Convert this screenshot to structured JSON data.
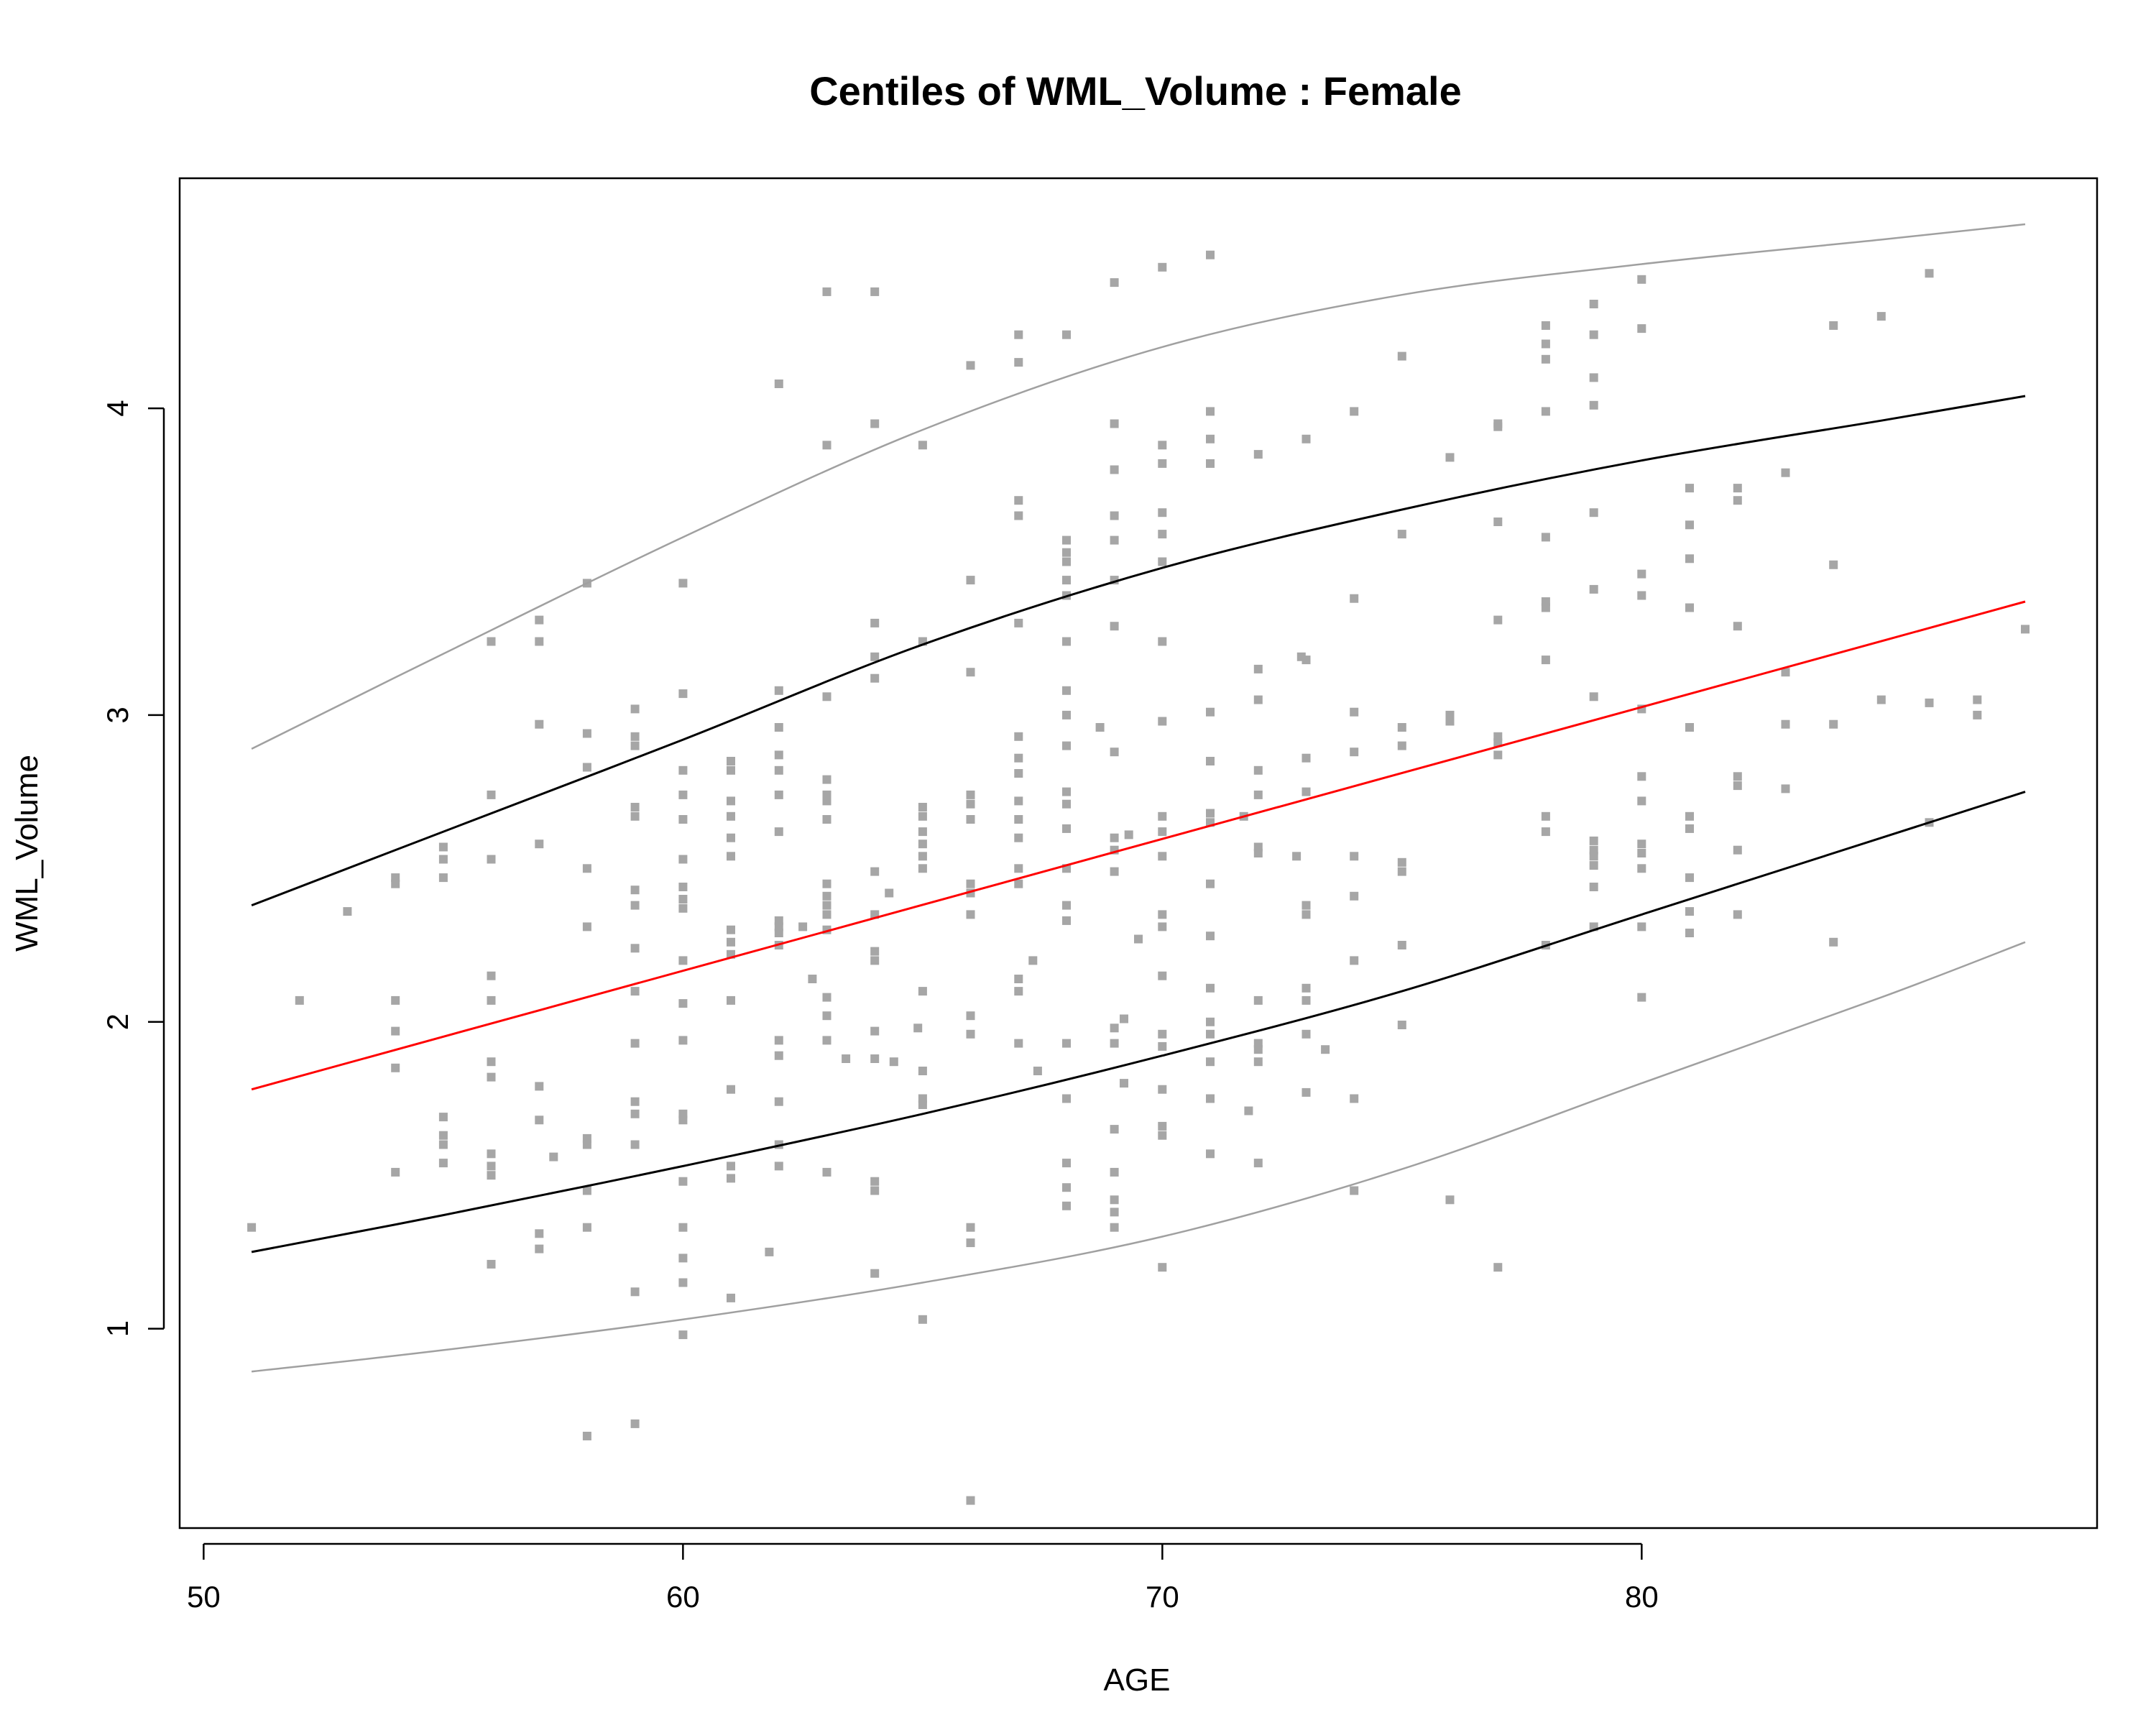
{
  "chart_data": {
    "type": "scatter",
    "title": "Centiles of WML_Volume :  Female",
    "xlabel": "AGE",
    "ylabel": "WML_Volume",
    "xlim": [
      49.5,
      89.5
    ],
    "ylim": [
      0.35,
      4.75
    ],
    "xticks": [
      50,
      60,
      70,
      80
    ],
    "yticks": [
      1,
      2,
      3,
      4
    ],
    "grid": false,
    "legend": "none",
    "colors": {
      "points": "#a6a6a6",
      "outer_centiles": "#a0a0a0",
      "inner_centiles": "#000000",
      "median": "#ff0000"
    },
    "centiles": [
      {
        "color": "#a0a0a0",
        "x": [
          51,
          55,
          60,
          65,
          70,
          75,
          80,
          85,
          88
        ],
        "y": [
          2.89,
          3.2,
          3.58,
          3.93,
          4.2,
          4.37,
          4.47,
          4.55,
          4.6
        ]
      },
      {
        "color": "#000000",
        "x": [
          51,
          55,
          60,
          65,
          70,
          75,
          80,
          85,
          88
        ],
        "y": [
          2.38,
          2.62,
          2.92,
          3.23,
          3.48,
          3.67,
          3.83,
          3.96,
          4.04
        ]
      },
      {
        "color": "#ff0000",
        "x": [
          51,
          88
        ],
        "y": [
          1.78,
          3.37
        ]
      },
      {
        "color": "#000000",
        "x": [
          51,
          55,
          60,
          65,
          70,
          75,
          80,
          85,
          88
        ],
        "y": [
          1.25,
          1.37,
          1.53,
          1.7,
          1.89,
          2.1,
          2.35,
          2.6,
          2.75
        ]
      },
      {
        "color": "#a0a0a0",
        "x": [
          51,
          55,
          60,
          65,
          70,
          75,
          80,
          85,
          88
        ],
        "y": [
          0.86,
          0.93,
          1.03,
          1.15,
          1.3,
          1.52,
          1.8,
          2.08,
          2.26
        ]
      }
    ],
    "points": [
      [
        51,
        1.33
      ],
      [
        52,
        2.07
      ],
      [
        53,
        2.36
      ],
      [
        54,
        2.45
      ],
      [
        54,
        2.47
      ],
      [
        54,
        2.07
      ],
      [
        54,
        1.97
      ],
      [
        54,
        1.85
      ],
      [
        54,
        1.51
      ],
      [
        55,
        2.57
      ],
      [
        55,
        2.53
      ],
      [
        55,
        2.47
      ],
      [
        55,
        1.69
      ],
      [
        55,
        1.63
      ],
      [
        55,
        1.6
      ],
      [
        55,
        1.54
      ],
      [
        56,
        3.24
      ],
      [
        56,
        2.74
      ],
      [
        56,
        2.53
      ],
      [
        56,
        2.15
      ],
      [
        56,
        2.07
      ],
      [
        56,
        1.87
      ],
      [
        56,
        1.82
      ],
      [
        56,
        1.57
      ],
      [
        56,
        1.53
      ],
      [
        56,
        1.5
      ],
      [
        56,
        1.21
      ],
      [
        57,
        3.31
      ],
      [
        57,
        3.24
      ],
      [
        57,
        2.97
      ],
      [
        57,
        2.58
      ],
      [
        57,
        1.79
      ],
      [
        57,
        1.68
      ],
      [
        57,
        1.31
      ],
      [
        57,
        1.26
      ],
      [
        57.3,
        1.56
      ],
      [
        58,
        3.43
      ],
      [
        58,
        2.94
      ],
      [
        58,
        2.83
      ],
      [
        58,
        2.5
      ],
      [
        58,
        2.31
      ],
      [
        58,
        1.62
      ],
      [
        58,
        1.6
      ],
      [
        58,
        1.45
      ],
      [
        58,
        1.33
      ],
      [
        58,
        0.65
      ],
      [
        59,
        3.02
      ],
      [
        59,
        2.93
      ],
      [
        59,
        2.9
      ],
      [
        59,
        2.7
      ],
      [
        59,
        2.67
      ],
      [
        59,
        2.43
      ],
      [
        59,
        2.38
      ],
      [
        59,
        2.24
      ],
      [
        59,
        2.1
      ],
      [
        59,
        1.93
      ],
      [
        59,
        1.74
      ],
      [
        59,
        1.7
      ],
      [
        59,
        1.6
      ],
      [
        59,
        1.12
      ],
      [
        59,
        0.69
      ],
      [
        60,
        3.43
      ],
      [
        60,
        3.07
      ],
      [
        60,
        2.82
      ],
      [
        60,
        2.74
      ],
      [
        60,
        2.66
      ],
      [
        60,
        2.53
      ],
      [
        60,
        2.44
      ],
      [
        60,
        2.4
      ],
      [
        60,
        2.37
      ],
      [
        60,
        2.2
      ],
      [
        60,
        2.06
      ],
      [
        60,
        1.94
      ],
      [
        60,
        1.7
      ],
      [
        60,
        1.68
      ],
      [
        60,
        1.48
      ],
      [
        60,
        1.33
      ],
      [
        60,
        1.23
      ],
      [
        60,
        1.15
      ],
      [
        60,
        0.98
      ],
      [
        61,
        2.85
      ],
      [
        61,
        2.82
      ],
      [
        61,
        2.72
      ],
      [
        61,
        2.67
      ],
      [
        61,
        2.6
      ],
      [
        61,
        2.54
      ],
      [
        61,
        2.3
      ],
      [
        61,
        2.26
      ],
      [
        61,
        2.22
      ],
      [
        61,
        2.07
      ],
      [
        61,
        1.78
      ],
      [
        61,
        1.53
      ],
      [
        61,
        1.49
      ],
      [
        61,
        1.1
      ],
      [
        61.8,
        1.25
      ],
      [
        62,
        4.08
      ],
      [
        62,
        3.08
      ],
      [
        62,
        2.96
      ],
      [
        62,
        2.87
      ],
      [
        62,
        2.82
      ],
      [
        62,
        2.74
      ],
      [
        62,
        2.62
      ],
      [
        62,
        2.33
      ],
      [
        62,
        2.31
      ],
      [
        62,
        2.29
      ],
      [
        62,
        2.25
      ],
      [
        62,
        1.94
      ],
      [
        62,
        1.89
      ],
      [
        62,
        1.74
      ],
      [
        62,
        1.6
      ],
      [
        62,
        1.53
      ],
      [
        62.5,
        2.31
      ],
      [
        62.7,
        2.14
      ],
      [
        63,
        4.38
      ],
      [
        63,
        3.88
      ],
      [
        63,
        3.06
      ],
      [
        63,
        2.79
      ],
      [
        63,
        2.74
      ],
      [
        63,
        2.72
      ],
      [
        63,
        2.66
      ],
      [
        63,
        2.45
      ],
      [
        63,
        2.41
      ],
      [
        63,
        2.38
      ],
      [
        63,
        2.35
      ],
      [
        63,
        2.3
      ],
      [
        63,
        2.08
      ],
      [
        63,
        2.02
      ],
      [
        63,
        1.94
      ],
      [
        63,
        1.51
      ],
      [
        63.4,
        1.88
      ],
      [
        64,
        4.38
      ],
      [
        64,
        3.95
      ],
      [
        64,
        3.3
      ],
      [
        64,
        3.19
      ],
      [
        64,
        3.12
      ],
      [
        64,
        2.49
      ],
      [
        64,
        2.35
      ],
      [
        64,
        2.23
      ],
      [
        64,
        2.2
      ],
      [
        64,
        1.97
      ],
      [
        64,
        1.88
      ],
      [
        64,
        1.48
      ],
      [
        64,
        1.45
      ],
      [
        64,
        1.18
      ],
      [
        64.3,
        2.42
      ],
      [
        64.4,
        1.87
      ],
      [
        65,
        3.88
      ],
      [
        65,
        3.24
      ],
      [
        65,
        2.7
      ],
      [
        65,
        2.67
      ],
      [
        65,
        2.62
      ],
      [
        65,
        2.58
      ],
      [
        65,
        2.54
      ],
      [
        65,
        2.5
      ],
      [
        65,
        2.1
      ],
      [
        65,
        1.84
      ],
      [
        65,
        1.75
      ],
      [
        65,
        1.73
      ],
      [
        65,
        1.03
      ],
      [
        64.9,
        1.98
      ],
      [
        66,
        4.14
      ],
      [
        66,
        3.44
      ],
      [
        66,
        3.14
      ],
      [
        66,
        2.74
      ],
      [
        66,
        2.71
      ],
      [
        66,
        2.66
      ],
      [
        66,
        2.45
      ],
      [
        66,
        2.42
      ],
      [
        66,
        2.35
      ],
      [
        66,
        2.02
      ],
      [
        66,
        1.96
      ],
      [
        66,
        1.33
      ],
      [
        66,
        1.28
      ],
      [
        66,
        0.44
      ],
      [
        67,
        4.24
      ],
      [
        67,
        4.15
      ],
      [
        67,
        3.7
      ],
      [
        67,
        3.65
      ],
      [
        67,
        3.3
      ],
      [
        67,
        2.93
      ],
      [
        67,
        2.86
      ],
      [
        67,
        2.81
      ],
      [
        67,
        2.72
      ],
      [
        67,
        2.66
      ],
      [
        67,
        2.6
      ],
      [
        67,
        2.5
      ],
      [
        67,
        2.45
      ],
      [
        67,
        2.14
      ],
      [
        67,
        2.1
      ],
      [
        67,
        1.93
      ],
      [
        67.3,
        2.2
      ],
      [
        67.4,
        1.84
      ],
      [
        68,
        4.24
      ],
      [
        68,
        3.57
      ],
      [
        68,
        3.53
      ],
      [
        68,
        3.5
      ],
      [
        68,
        3.44
      ],
      [
        68,
        3.39
      ],
      [
        68,
        3.24
      ],
      [
        68,
        3.08
      ],
      [
        68,
        3.0
      ],
      [
        68,
        2.9
      ],
      [
        68,
        2.75
      ],
      [
        68,
        2.71
      ],
      [
        68,
        2.63
      ],
      [
        68,
        2.5
      ],
      [
        68,
        2.38
      ],
      [
        68,
        2.33
      ],
      [
        68,
        1.93
      ],
      [
        68,
        1.75
      ],
      [
        68,
        1.54
      ],
      [
        68,
        1.46
      ],
      [
        68,
        1.4
      ],
      [
        69,
        4.41
      ],
      [
        69,
        3.95
      ],
      [
        69,
        3.8
      ],
      [
        69,
        3.65
      ],
      [
        69,
        3.57
      ],
      [
        69,
        3.44
      ],
      [
        69,
        3.29
      ],
      [
        69,
        2.88
      ],
      [
        69,
        2.6
      ],
      [
        69,
        2.56
      ],
      [
        69,
        2.49
      ],
      [
        69,
        1.98
      ],
      [
        69,
        1.93
      ],
      [
        69,
        1.65
      ],
      [
        69,
        1.51
      ],
      [
        69,
        1.42
      ],
      [
        69,
        1.38
      ],
      [
        69,
        1.33
      ],
      [
        69.2,
        2.01
      ],
      [
        69.2,
        1.8
      ],
      [
        69.3,
        2.61
      ],
      [
        68.7,
        2.96
      ],
      [
        69.5,
        2.27
      ],
      [
        70,
        4.46
      ],
      [
        70,
        3.88
      ],
      [
        70,
        3.82
      ],
      [
        70,
        3.66
      ],
      [
        70,
        3.59
      ],
      [
        70,
        3.5
      ],
      [
        70,
        3.24
      ],
      [
        70,
        2.98
      ],
      [
        70,
        2.67
      ],
      [
        70,
        2.62
      ],
      [
        70,
        2.54
      ],
      [
        70,
        2.35
      ],
      [
        70,
        2.31
      ],
      [
        70,
        2.15
      ],
      [
        70,
        1.96
      ],
      [
        70,
        1.92
      ],
      [
        70,
        1.78
      ],
      [
        70,
        1.66
      ],
      [
        70,
        1.63
      ],
      [
        70,
        1.2
      ],
      [
        71,
        4.5
      ],
      [
        71,
        3.99
      ],
      [
        71,
        3.9
      ],
      [
        71,
        3.82
      ],
      [
        71,
        3.01
      ],
      [
        71,
        2.85
      ],
      [
        71,
        2.68
      ],
      [
        71,
        2.65
      ],
      [
        71,
        2.45
      ],
      [
        71,
        2.28
      ],
      [
        71,
        2.11
      ],
      [
        71,
        2.0
      ],
      [
        71,
        1.96
      ],
      [
        71,
        1.87
      ],
      [
        71,
        1.75
      ],
      [
        71,
        1.57
      ],
      [
        71.7,
        2.67
      ],
      [
        71.8,
        1.71
      ],
      [
        72,
        3.85
      ],
      [
        72,
        3.15
      ],
      [
        72,
        3.05
      ],
      [
        72,
        2.82
      ],
      [
        72,
        2.74
      ],
      [
        72,
        2.57
      ],
      [
        72,
        2.55
      ],
      [
        72,
        2.07
      ],
      [
        72,
        1.93
      ],
      [
        72,
        1.91
      ],
      [
        72,
        1.87
      ],
      [
        72,
        1.54
      ],
      [
        72.8,
        2.54
      ],
      [
        72.9,
        3.19
      ],
      [
        73,
        3.9
      ],
      [
        73,
        3.18
      ],
      [
        73,
        2.86
      ],
      [
        73,
        2.75
      ],
      [
        73,
        2.38
      ],
      [
        73,
        2.35
      ],
      [
        73,
        2.11
      ],
      [
        73,
        2.07
      ],
      [
        73,
        1.96
      ],
      [
        73,
        1.77
      ],
      [
        73.4,
        1.91
      ],
      [
        74,
        3.99
      ],
      [
        74,
        3.38
      ],
      [
        74,
        3.01
      ],
      [
        74,
        2.88
      ],
      [
        74,
        2.54
      ],
      [
        74,
        2.41
      ],
      [
        74,
        2.2
      ],
      [
        74,
        1.75
      ],
      [
        74,
        1.45
      ],
      [
        75,
        4.17
      ],
      [
        75,
        3.59
      ],
      [
        75,
        2.96
      ],
      [
        75,
        2.9
      ],
      [
        75,
        2.52
      ],
      [
        75,
        2.49
      ],
      [
        75,
        2.25
      ],
      [
        75,
        1.99
      ],
      [
        76,
        3.84
      ],
      [
        76,
        3.0
      ],
      [
        76,
        2.98
      ],
      [
        76,
        1.42
      ],
      [
        77,
        3.95
      ],
      [
        77,
        3.94
      ],
      [
        77,
        3.63
      ],
      [
        77,
        3.31
      ],
      [
        77,
        2.93
      ],
      [
        77,
        2.91
      ],
      [
        77,
        2.87
      ],
      [
        77,
        1.2
      ],
      [
        78,
        4.27
      ],
      [
        78,
        4.21
      ],
      [
        78,
        4.16
      ],
      [
        78,
        3.99
      ],
      [
        78,
        3.58
      ],
      [
        78,
        3.37
      ],
      [
        78,
        3.35
      ],
      [
        78,
        3.18
      ],
      [
        78,
        2.67
      ],
      [
        78,
        2.62
      ],
      [
        78,
        2.25
      ],
      [
        79,
        4.34
      ],
      [
        79,
        4.24
      ],
      [
        79,
        4.1
      ],
      [
        79,
        4.01
      ],
      [
        79,
        3.66
      ],
      [
        79,
        3.41
      ],
      [
        79,
        3.06
      ],
      [
        79,
        2.59
      ],
      [
        79,
        2.56
      ],
      [
        79,
        2.54
      ],
      [
        79,
        2.51
      ],
      [
        79,
        2.44
      ],
      [
        79,
        2.31
      ],
      [
        80,
        4.42
      ],
      [
        80,
        4.26
      ],
      [
        80,
        3.46
      ],
      [
        80,
        3.39
      ],
      [
        80,
        3.02
      ],
      [
        80,
        2.8
      ],
      [
        80,
        2.72
      ],
      [
        80,
        2.58
      ],
      [
        80,
        2.55
      ],
      [
        80,
        2.5
      ],
      [
        80,
        2.31
      ],
      [
        80,
        2.08
      ],
      [
        81,
        3.74
      ],
      [
        81,
        3.62
      ],
      [
        81,
        3.51
      ],
      [
        81,
        3.35
      ],
      [
        81,
        2.96
      ],
      [
        81,
        2.67
      ],
      [
        81,
        2.63
      ],
      [
        81,
        2.47
      ],
      [
        81,
        2.36
      ],
      [
        81,
        2.29
      ],
      [
        82,
        3.74
      ],
      [
        82,
        3.7
      ],
      [
        82,
        3.29
      ],
      [
        82,
        2.8
      ],
      [
        82,
        2.77
      ],
      [
        82,
        2.56
      ],
      [
        82,
        2.35
      ],
      [
        83,
        3.79
      ],
      [
        83,
        3.14
      ],
      [
        83,
        2.97
      ],
      [
        83,
        2.76
      ],
      [
        84,
        4.27
      ],
      [
        84,
        3.49
      ],
      [
        84,
        2.97
      ],
      [
        84,
        2.26
      ],
      [
        85,
        4.3
      ],
      [
        85,
        3.05
      ],
      [
        86,
        4.44
      ],
      [
        86,
        3.04
      ],
      [
        86,
        2.65
      ],
      [
        87,
        3.05
      ],
      [
        87,
        3.0
      ],
      [
        88,
        3.28
      ]
    ]
  }
}
